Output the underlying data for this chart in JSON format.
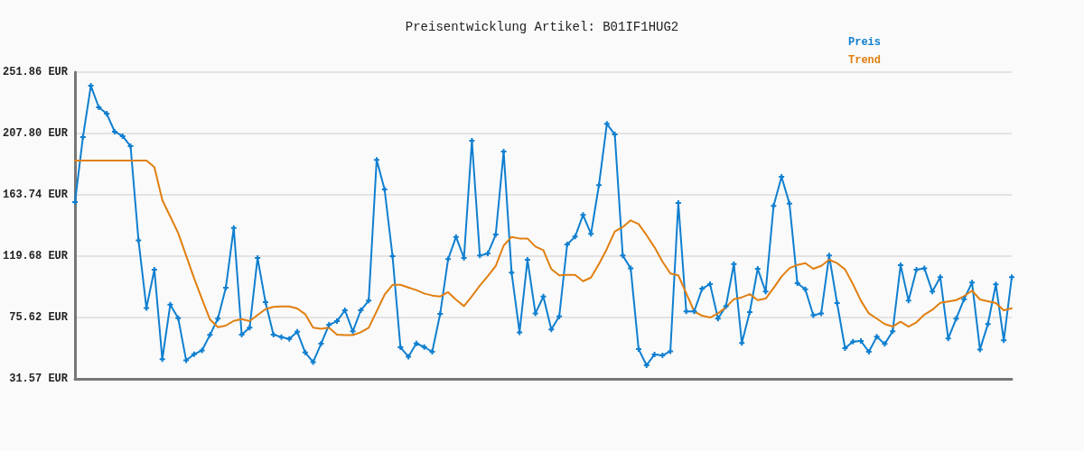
{
  "chart_data": {
    "type": "line",
    "title": "Preisentwicklung Artikel: B01IF1HUG2",
    "categories": [
      null,
      null,
      null,
      null,
      null,
      null,
      null,
      null,
      null,
      null,
      null,
      null,
      null,
      null,
      null,
      null,
      null,
      null,
      null,
      null,
      null,
      null,
      null,
      null,
      null,
      null,
      null,
      null,
      null,
      null,
      null,
      null,
      null,
      null,
      null,
      null,
      null,
      null,
      null,
      null,
      null,
      null,
      null,
      null,
      null,
      null,
      null,
      null,
      null,
      null,
      null,
      null,
      null,
      null,
      null,
      null,
      null,
      null,
      null,
      null,
      null,
      null,
      null,
      null,
      null,
      null,
      null,
      null,
      null,
      null,
      null,
      null,
      null,
      null,
      null,
      null,
      null,
      null,
      null,
      null,
      null,
      null,
      null,
      null,
      null,
      null,
      null,
      null,
      null,
      null,
      null,
      null,
      null,
      null,
      null,
      null,
      null,
      null,
      null,
      null,
      null,
      null,
      null,
      null,
      null,
      null,
      null,
      null,
      null,
      null,
      null,
      null,
      null,
      null,
      null,
      null,
      null,
      null,
      null
    ],
    "series": [
      {
        "name": "Preis",
        "color": "#0f7fd0",
        "marker": "cross",
        "values": [
          158.5,
          205.2,
          242.1,
          226.6,
          222.0,
          209.1,
          205.9,
          198.7,
          131.1,
          82.5,
          110.0,
          45.6,
          84.9,
          75.2,
          44.9,
          49.2,
          52.0,
          63.1,
          74.8,
          97.0,
          140.0,
          63.3,
          68.3,
          118.4,
          86.6,
          63.3,
          61.6,
          60.3,
          65.4,
          50.5,
          43.6,
          56.8,
          70.4,
          73.0,
          80.8,
          65.7,
          80.8,
          87.7,
          188.8,
          167.6,
          119.7,
          54.2,
          47.5,
          57.0,
          54.4,
          51.0,
          78.2,
          117.5,
          133.5,
          118.4,
          202.6,
          120.1,
          121.6,
          135.2,
          194.8,
          107.8,
          65.0,
          117.1,
          78.6,
          90.7,
          67.0,
          76.4,
          128.1,
          133.7,
          149.3,
          135.7,
          170.7,
          214.7,
          207.1,
          120.1,
          111.0,
          52.9,
          41.3,
          49.1,
          48.4,
          51.4,
          157.9,
          80.0,
          80.0,
          96.3,
          99.6,
          74.8,
          83.8,
          114.0,
          57.3,
          79.5,
          110.6,
          94.2,
          155.8,
          176.7,
          157.5,
          100.2,
          95.9,
          77.3,
          78.6,
          120.1,
          86.0,
          53.6,
          58.3,
          58.8,
          51.0,
          61.8,
          56.6,
          65.7,
          113.2,
          87.7,
          110.0,
          111.0,
          94.2,
          104.6,
          60.5,
          74.8,
          88.8,
          100.7,
          52.7,
          70.9,
          99.4,
          59.2,
          104.6
        ]
      },
      {
        "name": "Trend",
        "color": "#e07f10",
        "marker": "none",
        "values": [
          188.4,
          188.4,
          188.4,
          188.4,
          188.4,
          188.4,
          188.4,
          188.4,
          188.4,
          188.4,
          183.6,
          160.0,
          148.2,
          136.3,
          120.1,
          103.9,
          88.8,
          74.3,
          68.7,
          69.8,
          73.2,
          74.5,
          73.0,
          77.4,
          81.6,
          83.2,
          83.6,
          83.6,
          82.1,
          78.0,
          68.3,
          67.6,
          68.3,
          63.3,
          63.0,
          63.0,
          65.0,
          68.3,
          80.1,
          92.0,
          99.1,
          99.1,
          97.2,
          95.3,
          92.9,
          91.4,
          90.7,
          93.8,
          88.4,
          83.8,
          91.0,
          98.5,
          105.4,
          112.7,
          127.3,
          133.5,
          132.4,
          132.4,
          126.6,
          124.0,
          110.4,
          105.9,
          106.3,
          106.3,
          101.7,
          104.3,
          114.0,
          124.9,
          137.4,
          140.6,
          145.4,
          142.8,
          134.8,
          126.1,
          115.8,
          107.2,
          105.9,
          93.1,
          80.0,
          76.9,
          75.6,
          78.6,
          82.9,
          88.8,
          90.1,
          92.4,
          88.1,
          89.2,
          96.8,
          105.0,
          111.0,
          113.4,
          114.7,
          110.6,
          112.7,
          117.1,
          114.7,
          110.2,
          99.6,
          87.7,
          78.6,
          74.8,
          70.9,
          69.1,
          72.6,
          69.1,
          72.2,
          77.7,
          81.2,
          86.2,
          87.1,
          88.1,
          91.0,
          94.9,
          88.6,
          87.3,
          86.0,
          80.8,
          82.3
        ]
      }
    ],
    "ylim": [
      31.57,
      251.86
    ],
    "yticks": [
      {
        "value": 31.57,
        "label": "31.57 EUR"
      },
      {
        "value": 75.62,
        "label": "75.62 EUR"
      },
      {
        "value": 119.68,
        "label": "119.68 EUR"
      },
      {
        "value": 163.74,
        "label": "163.74 EUR"
      },
      {
        "value": 207.8,
        "label": "207.80 EUR"
      },
      {
        "value": 251.86,
        "label": "251.86 EUR"
      }
    ],
    "grid": "y",
    "legend": "top right",
    "line_style": "solid"
  }
}
